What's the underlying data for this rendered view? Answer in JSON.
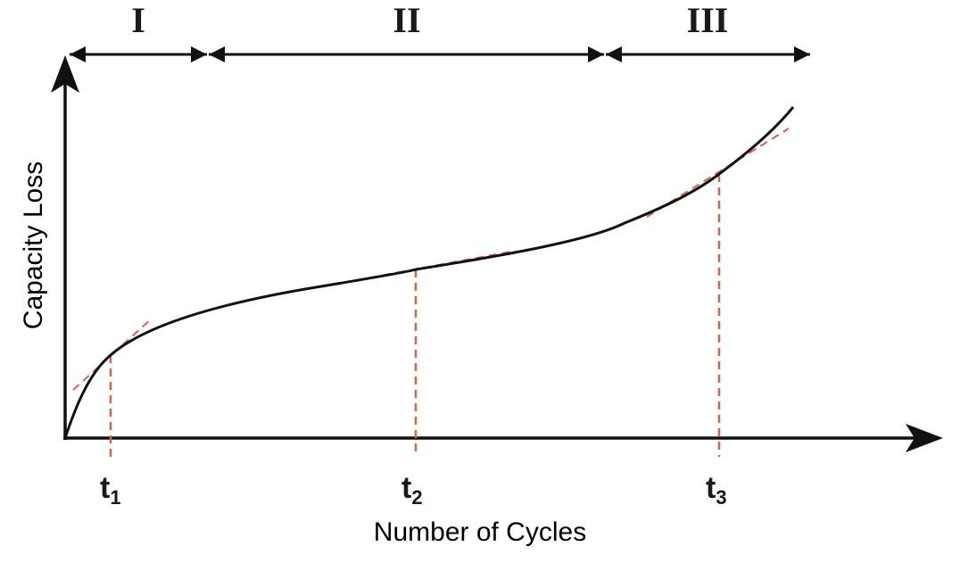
{
  "regions": [
    {
      "label": "I"
    },
    {
      "label": "II"
    },
    {
      "label": "III"
    }
  ],
  "axes": {
    "x_title": "Number of Cycles",
    "y_title": "Capacity Loss"
  },
  "time_markers": [
    {
      "main": "t",
      "sub": "1"
    },
    {
      "main": "t",
      "sub": "2"
    },
    {
      "main": "t",
      "sub": "3"
    }
  ],
  "colors": {
    "curve": "#111111",
    "axis": "#111111",
    "tangent": "#d9624a",
    "marker_line": "#d9624a"
  }
}
